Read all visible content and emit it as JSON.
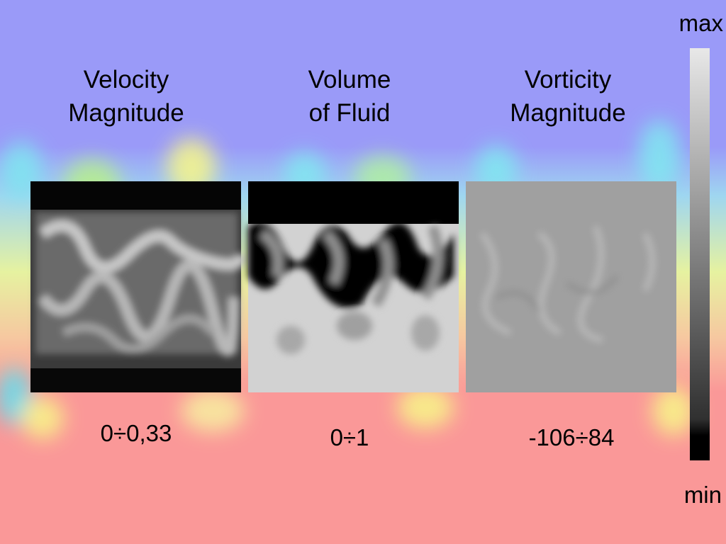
{
  "panels": [
    {
      "title": [
        "Velocity",
        "Magnitude"
      ],
      "range": "0÷0,33"
    },
    {
      "title": [
        "Volume",
        "of Fluid"
      ],
      "range": "0÷1"
    },
    {
      "title": [
        "Vorticity",
        "Magnitude"
      ],
      "range": "-106÷84"
    }
  ],
  "colorbar": {
    "max": "max",
    "min": "min"
  }
}
